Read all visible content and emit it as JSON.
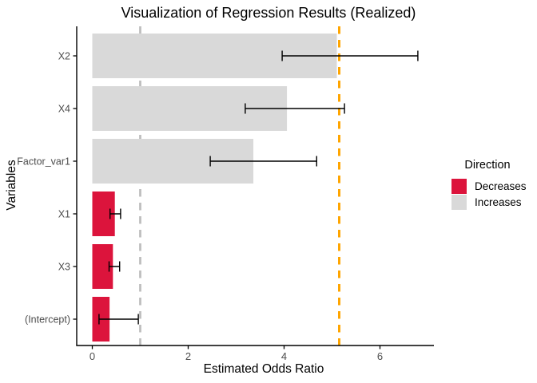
{
  "chart_data": {
    "type": "bar",
    "orientation": "horizontal",
    "title": "Visualization of Regression Results (Realized)",
    "xlabel": "Estimated Odds Ratio",
    "ylabel": "Variables",
    "categories": [
      "X2",
      "X4",
      "Factor_var1",
      "X1",
      "X3",
      "(Intercept)"
    ],
    "values": [
      5.1,
      4.06,
      3.36,
      0.47,
      0.43,
      0.36
    ],
    "ci_low": [
      3.96,
      3.19,
      2.46,
      0.37,
      0.35,
      0.14
    ],
    "ci_high": [
      6.79,
      5.26,
      4.68,
      0.59,
      0.57,
      0.96
    ],
    "directions": [
      "Increases",
      "Increases",
      "Increases",
      "Decreases",
      "Decreases",
      "Decreases"
    ],
    "x_ticks": [
      0,
      2,
      4,
      6
    ],
    "xlim": [
      -0.33,
      7.12
    ],
    "grid": false,
    "reference_lines": [
      {
        "x": 1.0,
        "style": "dashed",
        "color": "#BDBDBD",
        "name": "null-odds-line"
      },
      {
        "x": 5.15,
        "style": "dashed",
        "color": "#FFA500",
        "name": "realized-odds-line"
      }
    ],
    "legend": {
      "title": "Direction",
      "position": "right",
      "entries": [
        {
          "label": "Decreases",
          "color": "#DC143C"
        },
        {
          "label": "Increases",
          "color": "#D9D9D9"
        }
      ]
    }
  },
  "colors": {
    "decreases_fill": "#DC143C",
    "increases_fill": "#D9D9D9",
    "axis_text": "#4D4D4D",
    "axis_line": "#000000",
    "errorbar": "#000000",
    "background": "#FFFFFF"
  }
}
